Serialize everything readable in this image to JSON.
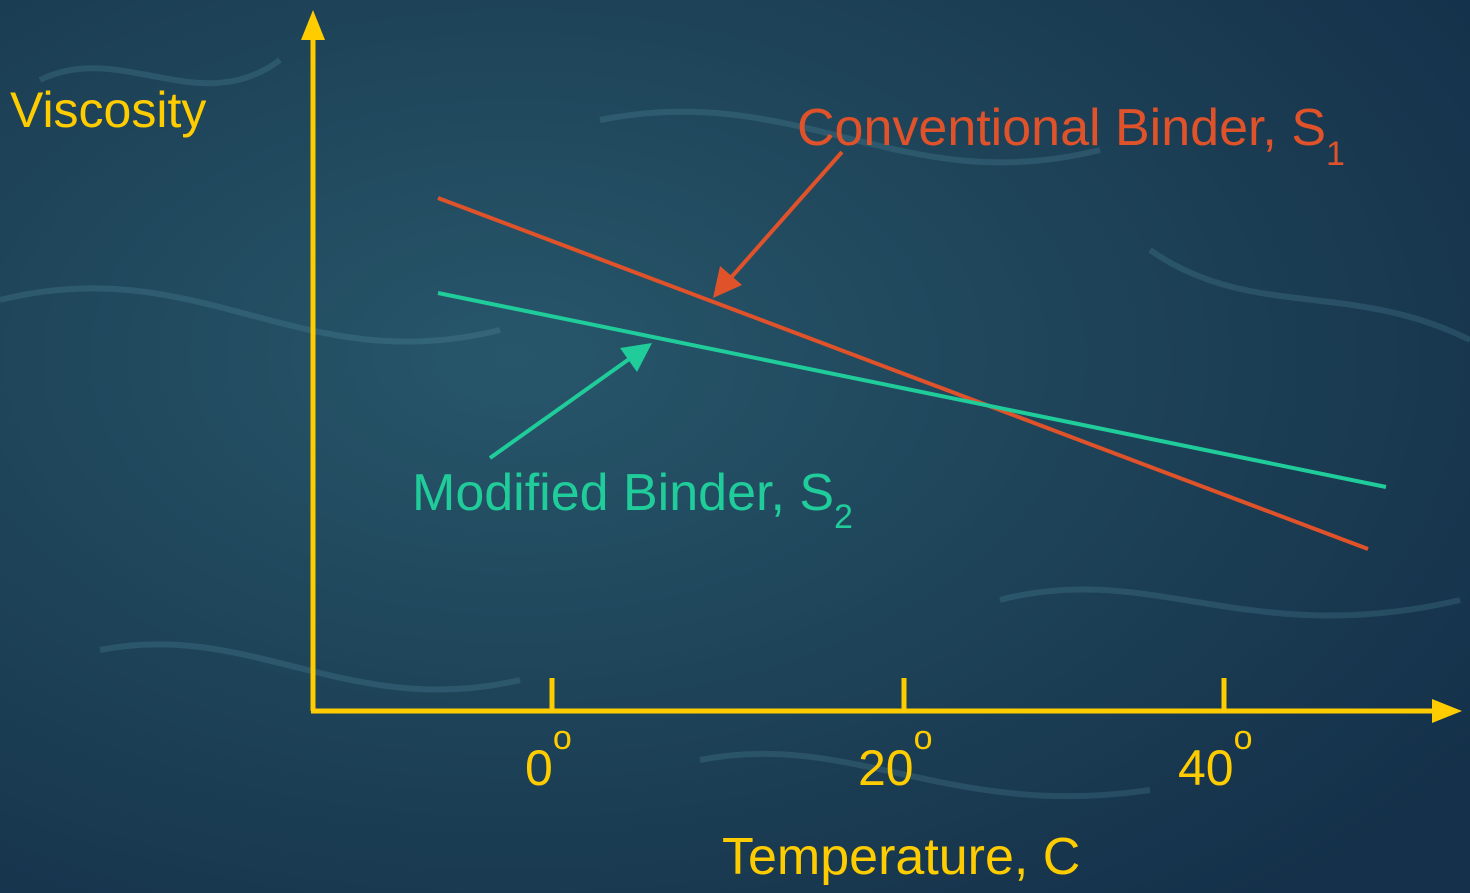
{
  "axes": {
    "y_label": "Viscosity",
    "x_label": "Temperature, C",
    "ticks": [
      {
        "text": "0",
        "superscript": "o"
      },
      {
        "text": "20",
        "superscript": "o"
      },
      {
        "text": "40",
        "superscript": "o"
      }
    ]
  },
  "lines": [
    {
      "label": "Conventional Binder, S",
      "subscript": "1"
    },
    {
      "label": "Modified Binder, S",
      "subscript": "2"
    }
  ]
}
